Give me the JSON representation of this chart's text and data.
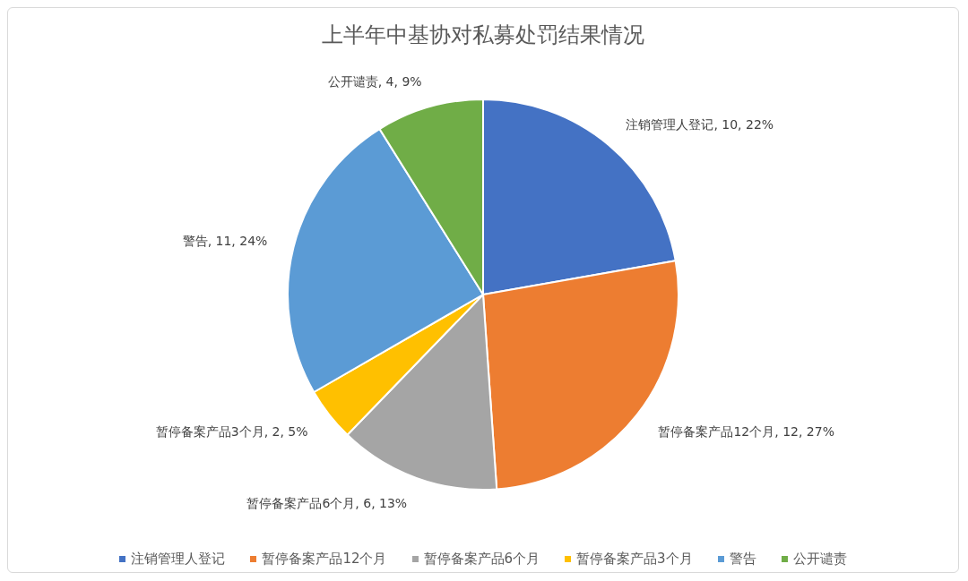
{
  "chart_data": {
    "type": "pie",
    "title": "上半年中基协对私募处罚结果情况",
    "categories": [
      "注销管理人登记",
      "暂停备案产品12个月",
      "暂停备案产品6个月",
      "暂停备案产品3个月",
      "警告",
      "公开谴责"
    ],
    "values": [
      10,
      12,
      6,
      2,
      11,
      4
    ],
    "colors": [
      "#4472c4",
      "#ed7d31",
      "#a5a5a5",
      "#ffc000",
      "#5b9bd5",
      "#70ad47"
    ],
    "value_labels": [
      "注销管理人登记, 10, 22%",
      "暂停备案产品12个月, 12, 27%",
      "暂停备案产品6个月, 6, 13%",
      "暂停备案产品3个月, 2, 5%",
      "警告, 11, 24%",
      "公开谴责, 4, 9%"
    ],
    "legend": "bottom"
  }
}
